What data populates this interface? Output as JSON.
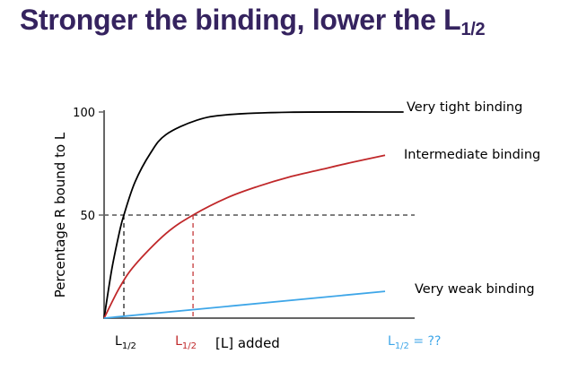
{
  "title": {
    "main": "Stronger the binding, lower the L",
    "sub": "1/2"
  },
  "chart_data": {
    "type": "line",
    "title": "Stronger the binding, lower the L1/2",
    "xlabel": "[L] added",
    "ylabel": "Percentage R bound to L",
    "xlim": [
      0,
      10
    ],
    "ylim": [
      0,
      100
    ],
    "yticks": [
      {
        "value": 50,
        "label": "50"
      },
      {
        "value": 100,
        "label": "100"
      }
    ],
    "grid": false,
    "half_saturation": 50,
    "series": [
      {
        "name": "Very tight binding",
        "color": "#000000",
        "x": [
          0,
          0.25,
          0.5,
          0.64,
          1,
          1.5,
          2,
          3,
          4,
          6,
          9.7
        ],
        "y": [
          0,
          23.8,
          42,
          50,
          66,
          80,
          89,
          96,
          98.7,
          99.9,
          100
        ],
        "l_half": 0.64,
        "l_half_label": "L",
        "l_half_sub": "1/2"
      },
      {
        "name": "Intermediate binding",
        "color": "#c0282a",
        "x": [
          0,
          0.5,
          1,
          2,
          2.88,
          4,
          5,
          6,
          7,
          8,
          9.1
        ],
        "y": [
          0,
          14.8,
          25.8,
          41,
          50,
          58.5,
          64,
          68.5,
          72,
          75.5,
          79
        ],
        "l_half": 2.88,
        "l_half_label": "L",
        "l_half_sub": "1/2"
      },
      {
        "name": "Very weak binding",
        "color": "#3ea6e8",
        "x": [
          0,
          9.1
        ],
        "y": [
          0,
          13
        ],
        "l_half_label": "L",
        "l_half_sub": "1/2",
        "l_half_text": " = ??"
      }
    ]
  }
}
